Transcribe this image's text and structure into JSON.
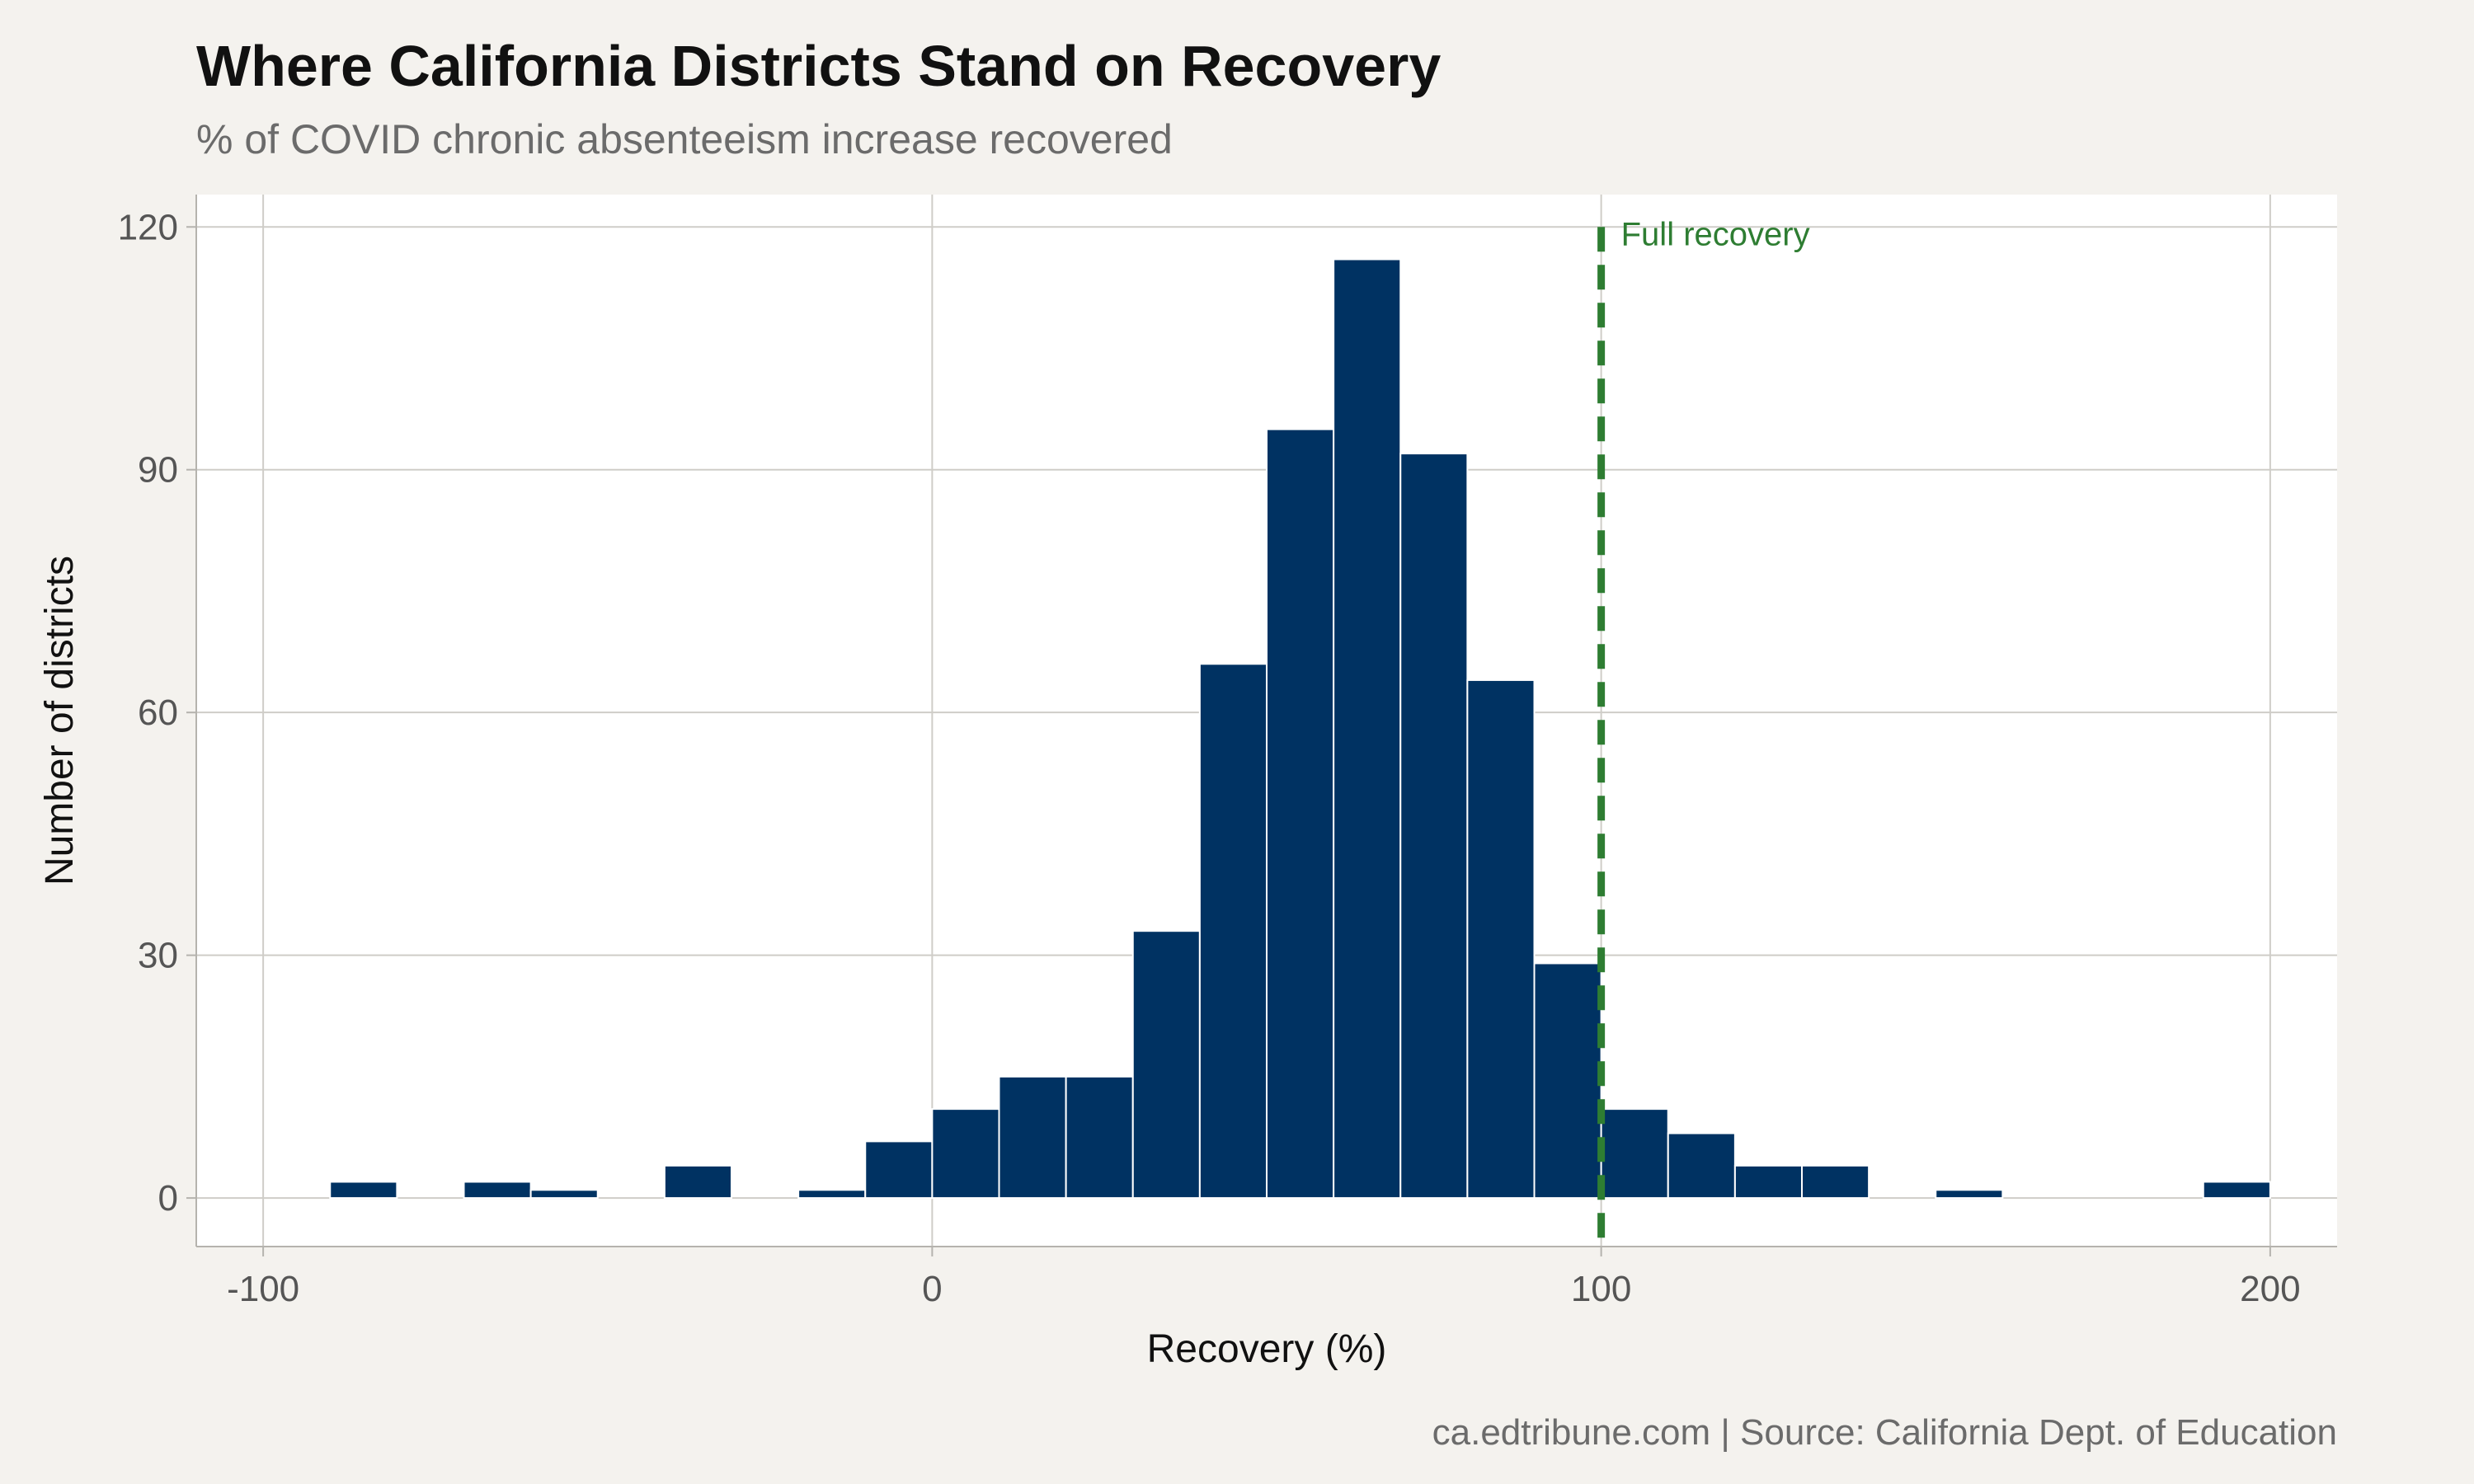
{
  "colors": {
    "background": "#f4f2ee",
    "panel": "#ffffff",
    "bar": "#003262",
    "bar_outline": "#ffffff",
    "grid": "#cfcdc8",
    "reference_line": "#2e7d32"
  },
  "chart_data": {
    "type": "bar",
    "title": "Where California Districts Stand on Recovery",
    "subtitle": "% of COVID chronic absenteeism increase recovered",
    "caption": "ca.edtribune.com | Source: California Dept. of Education",
    "xlabel": "Recovery (%)",
    "ylabel": "Number of districts",
    "xlim": [
      -110,
      210
    ],
    "ylim": [
      -6,
      124
    ],
    "xticks": [
      -100,
      0,
      100,
      200
    ],
    "yticks": [
      0,
      30,
      60,
      90,
      120
    ],
    "grid": true,
    "bin_width": 10,
    "bins": [
      {
        "x": -90,
        "count": 2
      },
      {
        "x": -70,
        "count": 2
      },
      {
        "x": -60,
        "count": 1
      },
      {
        "x": -40,
        "count": 4
      },
      {
        "x": -20,
        "count": 1
      },
      {
        "x": -10,
        "count": 7
      },
      {
        "x": 0,
        "count": 11
      },
      {
        "x": 10,
        "count": 15
      },
      {
        "x": 20,
        "count": 15
      },
      {
        "x": 30,
        "count": 33
      },
      {
        "x": 40,
        "count": 66
      },
      {
        "x": 50,
        "count": 95
      },
      {
        "x": 60,
        "count": 116
      },
      {
        "x": 70,
        "count": 92
      },
      {
        "x": 80,
        "count": 64
      },
      {
        "x": 90,
        "count": 29
      },
      {
        "x": 100,
        "count": 11
      },
      {
        "x": 110,
        "count": 8
      },
      {
        "x": 120,
        "count": 4
      },
      {
        "x": 130,
        "count": 4
      },
      {
        "x": 150,
        "count": 1
      },
      {
        "x": 190,
        "count": 2
      }
    ],
    "reference_line": {
      "x": 100,
      "label": "Full recovery",
      "style": "dashed"
    }
  }
}
